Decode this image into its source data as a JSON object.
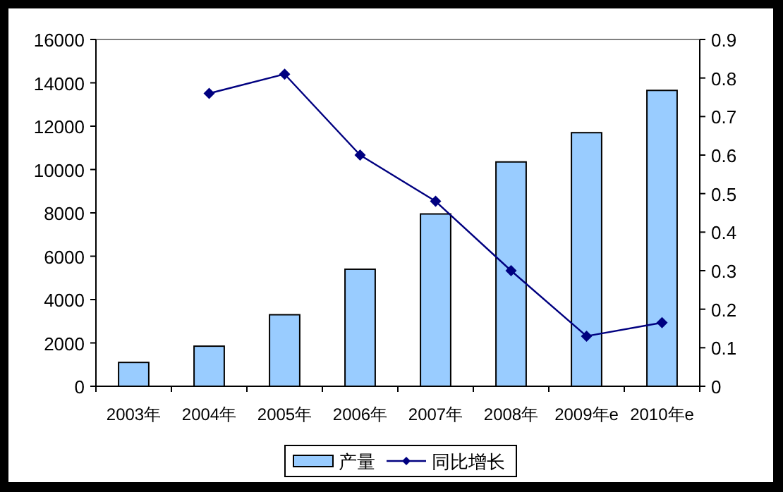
{
  "chart_data": {
    "type": "bar",
    "categories": [
      "2003年",
      "2004年",
      "2005年",
      "2006年",
      "2007年",
      "2008年",
      "2009年e",
      "2010年e"
    ],
    "series": [
      {
        "name": "产量",
        "color": "#99ccff",
        "values": [
          1100,
          1850,
          3300,
          5400,
          7950,
          10350,
          11700,
          13650
        ]
      },
      {
        "name": "同比增长",
        "type": "line",
        "axis": "y2",
        "color": "#000080",
        "marker": "diamond",
        "values": [
          null,
          0.76,
          0.81,
          0.6,
          0.48,
          0.3,
          0.13,
          0.165
        ]
      }
    ],
    "ylim": [
      0,
      16000
    ],
    "yticks": [
      0,
      2000,
      4000,
      6000,
      8000,
      10000,
      12000,
      14000,
      16000
    ],
    "y2lim": [
      0,
      0.9
    ],
    "y2ticks": [
      0,
      0.1,
      0.2,
      0.3,
      0.4,
      0.5,
      0.6,
      0.7,
      0.8,
      0.9
    ],
    "grid": false,
    "legend": "bottom"
  }
}
